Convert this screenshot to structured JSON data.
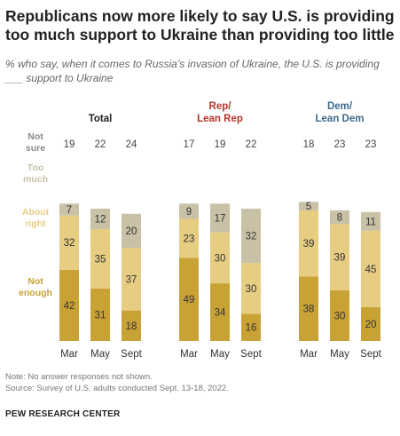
{
  "title": "Republicans now more likely to say U.S. is providing too much support to Ukraine than providing too little",
  "subtitle": "% who say, when it comes to Russia’s invasion of Ukraine, the U.S. is providing ___ support to Ukraine",
  "note": "Note: No answer responses not shown.",
  "source": "Source: Survey of U.S. adults conducted Sept. 13-18, 2022.",
  "brand": "PEW RESEARCH CENTER",
  "colors": {
    "not_enough": "#C9A235",
    "about_right": "#E6CD82",
    "too_much": "#C8C1A6",
    "rep": "#B5342A",
    "dem": "#3D6A8E",
    "row_label": "#999999"
  },
  "chart_data": {
    "type": "bar",
    "stacked": true,
    "row_labels": {
      "not_sure": [
        "Not",
        "sure"
      ],
      "too_much": [
        "Too",
        "much"
      ],
      "about_right": [
        "About",
        "right"
      ],
      "not_enough": [
        "Not",
        "enough"
      ]
    },
    "panels": [
      {
        "title": [
          "Total"
        ],
        "title_color": "#222222",
        "categories": [
          "Mar",
          "May",
          "Sept"
        ],
        "not_sure": [
          19,
          22,
          24
        ],
        "series": [
          {
            "name": "Not enough",
            "values": [
              42,
              31,
              18
            ]
          },
          {
            "name": "About right",
            "values": [
              32,
              35,
              37
            ]
          },
          {
            "name": "Too much",
            "values": [
              7,
              12,
              20
            ]
          }
        ]
      },
      {
        "title": [
          "Rep/",
          "Lean Rep"
        ],
        "title_color": "#B5342A",
        "categories": [
          "Mar",
          "May",
          "Sept"
        ],
        "not_sure": [
          17,
          19,
          22
        ],
        "series": [
          {
            "name": "Not enough",
            "values": [
              49,
              34,
              16
            ]
          },
          {
            "name": "About right",
            "values": [
              23,
              30,
              30
            ]
          },
          {
            "name": "Too much",
            "values": [
              9,
              17,
              32
            ]
          }
        ]
      },
      {
        "title": [
          "Dem/",
          "Lean Dem"
        ],
        "title_color": "#3D6A8E",
        "categories": [
          "Mar",
          "May",
          "Sept"
        ],
        "not_sure": [
          18,
          23,
          23
        ],
        "series": [
          {
            "name": "Not enough",
            "values": [
              38,
              30,
              20
            ]
          },
          {
            "name": "About right",
            "values": [
              39,
              39,
              45
            ]
          },
          {
            "name": "Too much",
            "values": [
              5,
              8,
              11
            ]
          }
        ]
      }
    ]
  }
}
